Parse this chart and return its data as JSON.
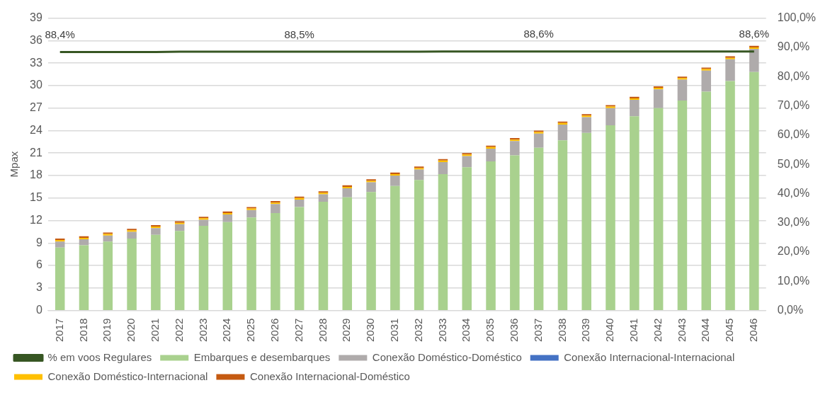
{
  "chart_data": {
    "type": "bar",
    "stacked": true,
    "ylabel": "Mpax",
    "categories": [
      "2017",
      "2018",
      "2019",
      "2020",
      "2021",
      "2022",
      "2023",
      "2024",
      "2025",
      "2026",
      "2027",
      "2028",
      "2029",
      "2030",
      "2031",
      "2032",
      "2033",
      "2034",
      "2035",
      "2036",
      "2037",
      "2038",
      "2039",
      "2040",
      "2041",
      "2042",
      "2043",
      "2044",
      "2045",
      "2046"
    ],
    "series": [
      {
        "name": "Embarques e desembarques",
        "color": "#a9d18e",
        "values": [
          8.4,
          8.7,
          9.2,
          9.6,
          10.1,
          10.6,
          11.3,
          11.8,
          12.4,
          13.0,
          13.8,
          14.5,
          15.1,
          15.8,
          16.6,
          17.4,
          18.2,
          19.1,
          19.9,
          20.7,
          21.7,
          22.7,
          23.7,
          24.7,
          25.9,
          27.0,
          28.0,
          29.2,
          30.6,
          31.8
        ]
      },
      {
        "name": "Conexão Doméstico-Doméstico",
        "color": "#afabab",
        "values": [
          0.8,
          0.8,
          0.8,
          0.9,
          0.9,
          0.9,
          0.8,
          1.0,
          1.0,
          1.2,
          1.0,
          1.0,
          1.2,
          1.3,
          1.4,
          1.4,
          1.6,
          1.5,
          1.7,
          1.9,
          1.9,
          2.1,
          2.1,
          2.3,
          2.2,
          2.5,
          2.8,
          2.8,
          2.9,
          3.1
        ]
      },
      {
        "name": "Conexão Internacional-Internacional",
        "color": "#4472c4",
        "values": [
          0,
          0,
          0,
          0,
          0,
          0,
          0,
          0,
          0,
          0,
          0,
          0,
          0,
          0,
          0,
          0,
          0,
          0,
          0,
          0,
          0,
          0,
          0,
          0,
          0,
          0,
          0,
          0,
          0,
          0
        ]
      },
      {
        "name": "Conexão Doméstico-Internacional",
        "color": "#ffc000",
        "values": [
          0.2,
          0.2,
          0.2,
          0.2,
          0.2,
          0.2,
          0.2,
          0.2,
          0.2,
          0.2,
          0.2,
          0.2,
          0.2,
          0.2,
          0.2,
          0.2,
          0.2,
          0.2,
          0.2,
          0.2,
          0.2,
          0.2,
          0.2,
          0.2,
          0.2,
          0.2,
          0.2,
          0.2,
          0.2,
          0.2
        ]
      },
      {
        "name": "Conexão Internacional-Doméstico",
        "color": "#c55a11",
        "values": [
          0.2,
          0.2,
          0.2,
          0.2,
          0.2,
          0.2,
          0.2,
          0.2,
          0.2,
          0.2,
          0.2,
          0.2,
          0.2,
          0.2,
          0.2,
          0.2,
          0.2,
          0.2,
          0.2,
          0.2,
          0.2,
          0.2,
          0.2,
          0.2,
          0.2,
          0.2,
          0.2,
          0.2,
          0.2,
          0.2
        ]
      },
      {
        "name": "% em voos Regulares",
        "type": "line",
        "axis": "y2",
        "color": "#375623",
        "values": [
          88.4,
          88.4,
          88.4,
          88.4,
          88.4,
          88.5,
          88.5,
          88.5,
          88.5,
          88.5,
          88.5,
          88.5,
          88.5,
          88.5,
          88.5,
          88.5,
          88.6,
          88.6,
          88.6,
          88.6,
          88.6,
          88.6,
          88.6,
          88.6,
          88.6,
          88.6,
          88.6,
          88.6,
          88.6,
          88.6
        ],
        "value_labels": [
          "88,4%",
          null,
          null,
          null,
          null,
          null,
          null,
          null,
          null,
          null,
          "88,5%",
          null,
          null,
          null,
          null,
          null,
          null,
          null,
          null,
          null,
          "88,6%",
          null,
          null,
          null,
          null,
          null,
          null,
          null,
          null,
          "88,6%"
        ]
      }
    ],
    "ylim": [
      0,
      39
    ],
    "yticks": [
      0,
      3,
      6,
      9,
      12,
      15,
      18,
      21,
      24,
      27,
      30,
      33,
      36,
      39
    ],
    "y2lim": [
      0,
      100
    ],
    "y2ticks": [
      {
        "value": 0,
        "label": "0,0%"
      },
      {
        "value": 10,
        "label": "10,0%"
      },
      {
        "value": 20,
        "label": "20,0%"
      },
      {
        "value": 30,
        "label": "30,0%"
      },
      {
        "value": 40,
        "label": "40,0%"
      },
      {
        "value": 50,
        "label": "50,0%"
      },
      {
        "value": 60,
        "label": "60,0%"
      },
      {
        "value": 70,
        "label": "70,0%"
      },
      {
        "value": 80,
        "label": "80,0%"
      },
      {
        "value": 90,
        "label": "90,0%"
      },
      {
        "value": 100,
        "label": "100,0%"
      }
    ],
    "grid": "y",
    "legend": "bottom",
    "marker": "none"
  }
}
